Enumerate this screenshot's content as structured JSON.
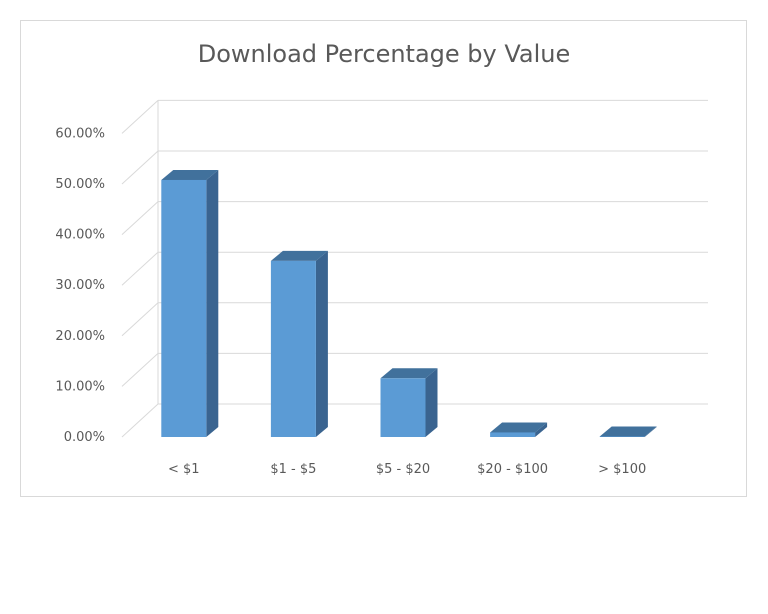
{
  "chart_data": {
    "type": "bar",
    "title": "Download Percentage by Value",
    "categories": [
      "< $1",
      "$1 - $5",
      "$5 - $20",
      "$20 - $100",
      "> $100"
    ],
    "values": [
      50.8,
      34.8,
      11.6,
      0.9,
      0.1
    ],
    "y_ticks": [
      "0.00%",
      "10.00%",
      "20.00%",
      "30.00%",
      "40.00%",
      "50.00%",
      "60.00%"
    ],
    "ylim": [
      0,
      60
    ],
    "y_unit": "%",
    "grid": true,
    "legend": "none",
    "style": "3d-column",
    "colors": {
      "bar_front": "#5b9bd5",
      "bar_side": "#3a6490",
      "bar_top": "#41719c",
      "grid": "#d9d9d9"
    }
  }
}
